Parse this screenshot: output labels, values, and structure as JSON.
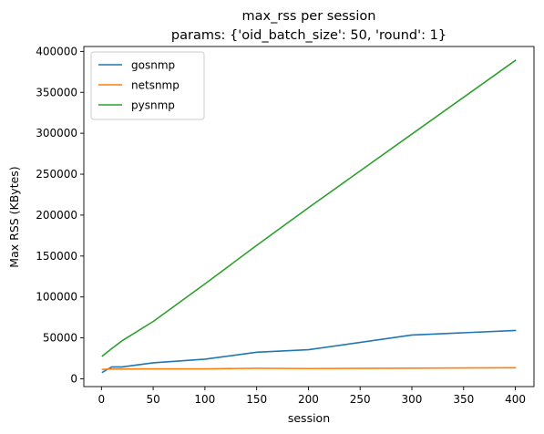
{
  "chart_data": {
    "type": "line",
    "title": "max_rss per session",
    "subtitle": "params: {'oid_batch_size': 50, 'round': 1}",
    "xlabel": "session",
    "ylabel": "Max RSS (KBytes)",
    "xlim": [
      -17,
      418
    ],
    "ylim": [
      -9500,
      406000
    ],
    "xticks": [
      0,
      50,
      100,
      150,
      200,
      250,
      300,
      350,
      400
    ],
    "yticks": [
      0,
      50000,
      100000,
      150000,
      200000,
      250000,
      300000,
      350000,
      400000
    ],
    "grid": false,
    "legend_position": "upper left",
    "series": [
      {
        "name": "gosnmp",
        "color": "#1f77b4",
        "x": [
          1,
          10,
          20,
          50,
          100,
          150,
          200,
          300,
          400
        ],
        "y": [
          8000,
          14500,
          14500,
          19500,
          24000,
          32500,
          35500,
          53500,
          59000
        ]
      },
      {
        "name": "netsnmp",
        "color": "#ff7f0e",
        "x": [
          1,
          10,
          20,
          50,
          100,
          150,
          200,
          300,
          400
        ],
        "y": [
          11500,
          12000,
          12000,
          12200,
          12200,
          12800,
          12500,
          13000,
          13500
        ]
      },
      {
        "name": "pysnmp",
        "color": "#2ca02c",
        "x": [
          1,
          10,
          20,
          50,
          100,
          150,
          200,
          300,
          400
        ],
        "y": [
          28000,
          37000,
          46500,
          70000,
          116000,
          163000,
          209000,
          299000,
          389000
        ]
      }
    ]
  }
}
